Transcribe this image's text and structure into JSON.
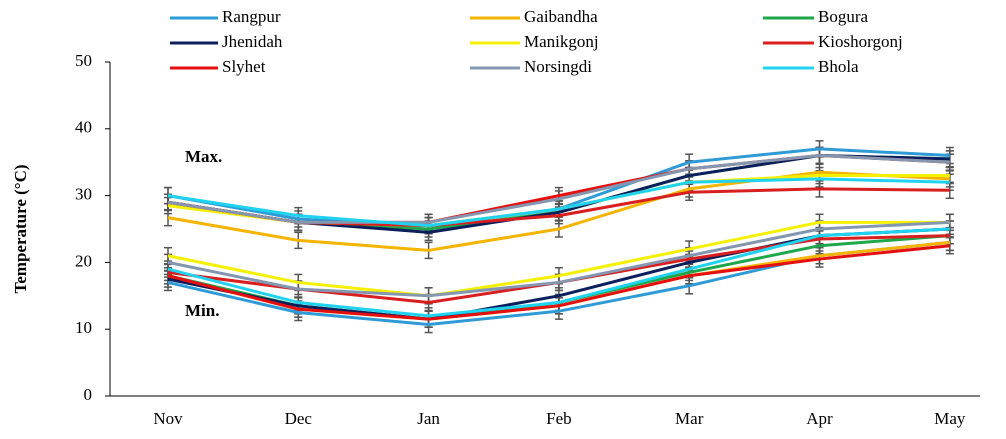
{
  "chart_data": {
    "type": "line",
    "y_label": "Temperature (°C)",
    "annotations": [
      "Max.",
      "Min."
    ],
    "categories": [
      "Nov",
      "Dec",
      "Jan",
      "Feb",
      "Mar",
      "Apr",
      "May"
    ],
    "ylim": [
      0,
      50
    ],
    "yticks": [
      0,
      10,
      20,
      30,
      40,
      50
    ],
    "grid": false,
    "series": [
      {
        "name": "Rangpur",
        "color": "#2e9bd6",
        "max": [
          30,
          26.5,
          25.5,
          28,
          35,
          37,
          36
        ],
        "min": [
          17,
          12.5,
          10.7,
          12.7,
          16.5,
          21,
          23
        ],
        "error": 1.2
      },
      {
        "name": "Gaibandha",
        "color": "#f5b400",
        "max": [
          26.7,
          23.3,
          21.8,
          25,
          31,
          33.5,
          32.5
        ],
        "min": [
          18,
          13,
          11.5,
          13.5,
          18,
          21,
          23
        ],
        "error": 1.2
      },
      {
        "name": "Bogura",
        "color": "#1ea64a",
        "max": [
          29,
          26,
          25,
          27.5,
          33,
          36,
          35.5
        ],
        "min": [
          18,
          13.5,
          11.5,
          14,
          18.5,
          22.5,
          24
        ],
        "error": 1.2
      },
      {
        "name": "Jhenidah",
        "color": "#0b1f5c",
        "max": [
          29,
          26,
          24.5,
          27.5,
          33,
          36,
          35.5
        ],
        "min": [
          17.5,
          13.5,
          11.5,
          15,
          20,
          24,
          25
        ],
        "error": 1.2
      },
      {
        "name": "Manikgonj",
        "color": "#f5f000",
        "max": [
          28.5,
          26,
          25.5,
          28,
          32,
          33,
          33
        ],
        "min": [
          21,
          17,
          15,
          18,
          22,
          26,
          26
        ],
        "error": 1.2
      },
      {
        "name": "Kioshorgonj",
        "color": "#d81e1e",
        "max": [
          29,
          26,
          25.5,
          27,
          30.5,
          31,
          30.8
        ],
        "min": [
          18.5,
          16,
          14,
          17,
          20.5,
          23.5,
          24
        ],
        "error": 1.2
      },
      {
        "name": "Slyhet",
        "color": "#e50f0f",
        "max": [
          29,
          26,
          26,
          30,
          34,
          36,
          35
        ],
        "min": [
          18,
          13,
          11.5,
          13.5,
          18,
          20.5,
          22.5
        ],
        "error": 1.2
      },
      {
        "name": "Norsingdi",
        "color": "#8497b0",
        "max": [
          29,
          26,
          26,
          29.5,
          34,
          36,
          35
        ],
        "min": [
          20,
          16,
          15,
          17,
          21,
          25,
          26
        ],
        "error": 1.2
      },
      {
        "name": "Bhola",
        "color": "#1fd3f0",
        "max": [
          30,
          27,
          25.5,
          28,
          32,
          32.5,
          32
        ],
        "min": [
          19,
          14,
          12,
          14,
          19,
          24,
          25
        ],
        "error": 1.2
      }
    ]
  }
}
